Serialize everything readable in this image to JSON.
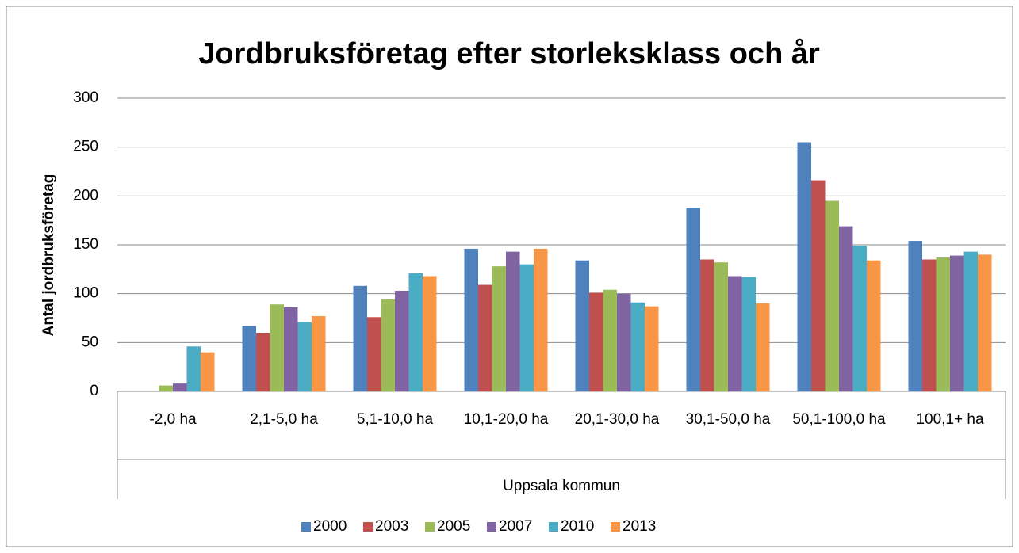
{
  "chart_data": {
    "type": "bar",
    "title": "Jordbruksföretag efter storleksklass och år",
    "y_label": "Antal jordbruksföretag",
    "x_group": "Uppsala kommun",
    "categories": [
      "-2,0 ha",
      "2,1-5,0 ha",
      "5,1-10,0 ha",
      "10,1-20,0 ha",
      "20,1-30,0 ha",
      "30,1-50,0 ha",
      "50,1-100,0 ha",
      "100,1+ ha"
    ],
    "series": [
      {
        "name": "2000",
        "color": "#4f81bd",
        "values": [
          0,
          67,
          108,
          146,
          134,
          188,
          255,
          154
        ]
      },
      {
        "name": "2003",
        "color": "#c0504d",
        "values": [
          0,
          60,
          76,
          109,
          101,
          135,
          216,
          135
        ]
      },
      {
        "name": "2005",
        "color": "#9bbb59",
        "values": [
          6,
          89,
          94,
          128,
          104,
          132,
          195,
          137
        ]
      },
      {
        "name": "2007",
        "color": "#8064a2",
        "values": [
          8,
          86,
          103,
          143,
          100,
          118,
          169,
          139
        ]
      },
      {
        "name": "2010",
        "color": "#4bacc6",
        "values": [
          46,
          71,
          121,
          130,
          91,
          117,
          149,
          143
        ]
      },
      {
        "name": "2013",
        "color": "#f79646",
        "values": [
          40,
          77,
          118,
          146,
          87,
          90,
          134,
          140
        ]
      }
    ],
    "ylim": [
      0,
      300
    ],
    "yticks": [
      0,
      50,
      100,
      150,
      200,
      250,
      300
    ],
    "grid": true,
    "legend": "bottom"
  }
}
